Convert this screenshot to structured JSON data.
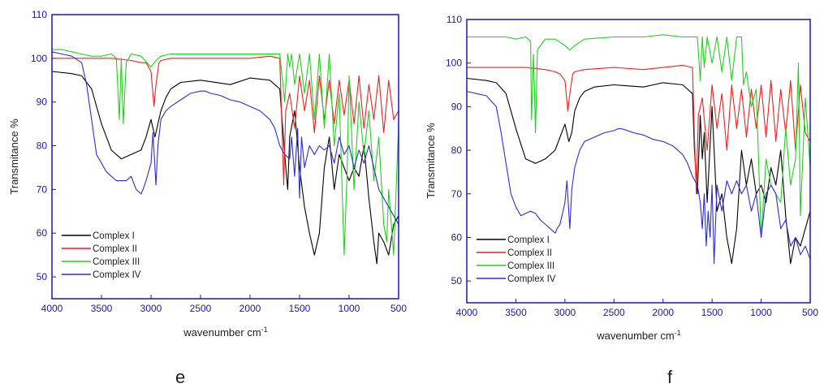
{
  "panels": [
    {
      "letter": "e",
      "ylabel": "Transmitance %",
      "xlabel_main": "wavenumber cm",
      "xlabel_sup": "-1",
      "legend": [
        "Complex I",
        "Complex II",
        "Complex III",
        "Complex IV"
      ]
    },
    {
      "letter": "f",
      "ylabel": "Transmitance %",
      "xlabel_main": "wavenumber cm",
      "xlabel_sup": "-1",
      "legend": [
        "Complex I",
        "Complex II",
        "Complex III",
        "Complex IV"
      ]
    }
  ],
  "chart_data": [
    {
      "type": "line",
      "title": "",
      "xlabel": "wavenumber cm-1",
      "ylabel": "Transmitance %",
      "xlim": [
        4000,
        500
      ],
      "ylim": [
        45,
        110
      ],
      "x_reversed": true,
      "xticks": [
        4000,
        3500,
        3000,
        2500,
        2000,
        1500,
        1000,
        500
      ],
      "yticks": [
        50,
        60,
        70,
        80,
        90,
        100,
        110
      ],
      "legend_position": "bottom-left",
      "series": [
        {
          "name": "Complex I",
          "color": "#000000",
          "x": [
            4000,
            3800,
            3700,
            3600,
            3500,
            3400,
            3300,
            3200,
            3100,
            3050,
            3000,
            2960,
            2930,
            2900,
            2850,
            2800,
            2700,
            2500,
            2200,
            2000,
            1800,
            1700,
            1650,
            1620,
            1600,
            1550,
            1500,
            1450,
            1400,
            1350,
            1300,
            1250,
            1200,
            1150,
            1100,
            1050,
            1000,
            950,
            900,
            850,
            800,
            750,
            720,
            700,
            650,
            600,
            550,
            500
          ],
          "y": [
            97,
            96.5,
            96,
            93,
            85,
            79,
            77,
            78,
            79,
            82,
            86,
            82,
            85,
            88,
            91,
            93,
            94.5,
            95,
            94,
            95.5,
            95,
            93,
            78,
            70,
            82,
            88,
            75,
            66,
            60,
            55,
            60,
            75,
            82,
            70,
            78,
            75,
            72,
            75,
            73,
            80,
            68,
            58,
            53,
            60,
            58,
            55,
            62,
            64
          ]
        },
        {
          "name": "Complex II",
          "color": "#e8251d",
          "x": [
            4000,
            3800,
            3600,
            3400,
            3200,
            3100,
            3050,
            3000,
            2970,
            2950,
            2920,
            2900,
            2800,
            2500,
            2200,
            2000,
            1800,
            1700,
            1680,
            1660,
            1640,
            1600,
            1550,
            1500,
            1450,
            1400,
            1350,
            1300,
            1250,
            1200,
            1150,
            1100,
            1050,
            1000,
            950,
            900,
            850,
            800,
            750,
            700,
            650,
            600,
            550,
            500
          ],
          "y": [
            100,
            100,
            100,
            100,
            99.5,
            99,
            99,
            97,
            89,
            94,
            99,
            99.5,
            100,
            100,
            100,
            100,
            100.5,
            100,
            86,
            71,
            88,
            92,
            84,
            96,
            88,
            95,
            83,
            96,
            86,
            95,
            85,
            95,
            87,
            95,
            85,
            96,
            84,
            94,
            86,
            96,
            83,
            95,
            86,
            88
          ]
        },
        {
          "name": "Complex III",
          "color": "#22d11e",
          "x": [
            4000,
            3900,
            3800,
            3700,
            3600,
            3500,
            3400,
            3350,
            3320,
            3300,
            3280,
            3250,
            3200,
            3100,
            3000,
            2950,
            2900,
            2800,
            2500,
            2200,
            2000,
            1800,
            1700,
            1650,
            1620,
            1600,
            1580,
            1550,
            1500,
            1450,
            1400,
            1350,
            1300,
            1250,
            1200,
            1150,
            1100,
            1050,
            1020,
            1000,
            950,
            900,
            850,
            800,
            750,
            700,
            650,
            620,
            600,
            550,
            500
          ],
          "y": [
            102,
            102,
            101.5,
            101,
            100.5,
            100.5,
            101,
            100,
            86,
            100,
            85,
            99,
            101,
            100.5,
            98,
            99.5,
            100.5,
            101,
            101,
            101,
            101,
            101,
            101,
            90,
            101,
            98,
            101,
            94,
            101,
            92,
            101,
            86,
            101,
            84,
            101,
            80,
            92,
            55,
            74,
            96,
            70,
            90,
            78,
            88,
            72,
            82,
            62,
            58,
            70,
            55,
            85
          ]
        },
        {
          "name": "Complex IV",
          "color": "#2b2fd8",
          "x": [
            4000,
            3900,
            3800,
            3700,
            3650,
            3600,
            3550,
            3500,
            3450,
            3400,
            3350,
            3300,
            3250,
            3200,
            3150,
            3100,
            3080,
            3050,
            3000,
            2980,
            2950,
            2930,
            2900,
            2850,
            2800,
            2700,
            2600,
            2500,
            2450,
            2400,
            2300,
            2200,
            2100,
            2000,
            1900,
            1800,
            1750,
            1700,
            1650,
            1600,
            1580,
            1550,
            1520,
            1500,
            1480,
            1450,
            1400,
            1350,
            1300,
            1250,
            1200,
            1150,
            1100,
            1050,
            1000,
            950,
            900,
            850,
            800,
            750,
            700,
            650,
            600,
            550,
            500
          ],
          "y": [
            101.5,
            101,
            100.5,
            99,
            94,
            86,
            78,
            76,
            74,
            73,
            72,
            72,
            72,
            73,
            70,
            69,
            70,
            72,
            76,
            83,
            71,
            80,
            86,
            88,
            89,
            90.5,
            92,
            92.5,
            92.5,
            92,
            91.5,
            90.5,
            90,
            89,
            88,
            86,
            84,
            80,
            78,
            77,
            82,
            73,
            84,
            68,
            82,
            75,
            80,
            78,
            80,
            79,
            80,
            76,
            82,
            78,
            80,
            75,
            79,
            76,
            80,
            75,
            70,
            68,
            66,
            64,
            62
          ]
        }
      ]
    },
    {
      "type": "line",
      "title": "",
      "xlabel": "wavenumber cm-1",
      "ylabel": "Transmitance %",
      "xlim": [
        4000,
        500
      ],
      "ylim": [
        45,
        110
      ],
      "x_reversed": true,
      "xticks": [
        4000,
        3500,
        3000,
        2500,
        2000,
        1500,
        1000,
        500
      ],
      "yticks": [
        50,
        60,
        70,
        80,
        90,
        100,
        110
      ],
      "legend_position": "bottom-left",
      "series": [
        {
          "name": "Complex I",
          "color": "#000000",
          "x": [
            4000,
            3800,
            3700,
            3600,
            3500,
            3400,
            3300,
            3200,
            3100,
            3050,
            3000,
            2960,
            2930,
            2900,
            2850,
            2800,
            2700,
            2500,
            2200,
            2000,
            1800,
            1700,
            1680,
            1650,
            1620,
            1600,
            1580,
            1550,
            1500,
            1450,
            1400,
            1350,
            1300,
            1250,
            1200,
            1150,
            1100,
            1050,
            1000,
            950,
            900,
            850,
            800,
            750,
            700,
            650,
            600,
            550,
            500
          ],
          "y": [
            96.5,
            96,
            95.5,
            93,
            85,
            78,
            77,
            78,
            80,
            83,
            86,
            82,
            84,
            89,
            92,
            93.5,
            94.5,
            95,
            94.5,
            95.5,
            95,
            93,
            80,
            70,
            88,
            78,
            84,
            68,
            90,
            66,
            70,
            60,
            54,
            62,
            80,
            72,
            78,
            70,
            72,
            68,
            76,
            72,
            80,
            65,
            54,
            60,
            58,
            62,
            66
          ]
        },
        {
          "name": "Complex II",
          "color": "#e8251d",
          "x": [
            4000,
            3800,
            3600,
            3400,
            3200,
            3100,
            3050,
            3000,
            2970,
            2950,
            2920,
            2900,
            2800,
            2500,
            2200,
            2000,
            1800,
            1700,
            1680,
            1660,
            1640,
            1600,
            1550,
            1500,
            1450,
            1400,
            1350,
            1300,
            1250,
            1200,
            1150,
            1100,
            1050,
            1000,
            950,
            900,
            850,
            800,
            750,
            700,
            650,
            600,
            550,
            500
          ],
          "y": [
            99,
            99,
            99,
            99,
            98.5,
            98,
            97.5,
            96,
            89,
            93,
            97.5,
            98,
            98.5,
            99,
            98.5,
            99,
            99.5,
            99,
            83,
            70,
            88,
            92,
            80,
            95,
            85,
            93,
            80,
            95,
            85,
            94,
            83,
            94,
            85,
            95,
            83,
            96,
            82,
            94,
            84,
            96,
            80,
            95,
            84,
            82
          ]
        },
        {
          "name": "Complex III",
          "color": "#22d11e",
          "x": [
            4000,
            3900,
            3800,
            3700,
            3600,
            3500,
            3400,
            3350,
            3340,
            3320,
            3300,
            3280,
            3250,
            3200,
            3100,
            3000,
            2950,
            2900,
            2800,
            2500,
            2200,
            2000,
            1800,
            1700,
            1650,
            1620,
            1600,
            1580,
            1550,
            1500,
            1450,
            1400,
            1350,
            1300,
            1250,
            1200,
            1180,
            1150,
            1100,
            1050,
            1000,
            950,
            900,
            850,
            800,
            750,
            700,
            650,
            620,
            600,
            550,
            500
          ],
          "y": [
            106,
            106,
            106,
            106,
            106,
            105.5,
            106,
            105,
            87,
            102,
            84,
            103,
            104,
            105.5,
            105.5,
            104,
            103,
            104,
            105.5,
            106,
            106,
            106.5,
            106,
            106,
            106,
            96,
            106,
            99,
            106,
            100,
            106,
            98,
            106,
            96,
            106,
            106,
            95,
            98,
            90,
            94,
            60,
            78,
            72,
            70,
            68,
            85,
            72,
            78,
            100,
            65,
            92,
            76
          ]
        },
        {
          "name": "Complex IV",
          "color": "#2b2fd8",
          "x": [
            4000,
            3900,
            3800,
            3700,
            3650,
            3600,
            3550,
            3500,
            3450,
            3400,
            3350,
            3300,
            3250,
            3200,
            3150,
            3100,
            3080,
            3050,
            3000,
            2980,
            2950,
            2930,
            2900,
            2850,
            2800,
            2700,
            2600,
            2500,
            2450,
            2400,
            2300,
            2200,
            2100,
            2000,
            1900,
            1800,
            1750,
            1700,
            1650,
            1620,
            1600,
            1580,
            1560,
            1540,
            1520,
            1500,
            1480,
            1450,
            1400,
            1350,
            1300,
            1250,
            1200,
            1150,
            1100,
            1050,
            1000,
            950,
            900,
            850,
            800,
            750,
            700,
            650,
            600,
            550,
            500
          ],
          "y": [
            93.5,
            93,
            92.5,
            90,
            84,
            77,
            70,
            67,
            65,
            65.5,
            66,
            65.5,
            64,
            63,
            62,
            61,
            62,
            63,
            68,
            73,
            62,
            71,
            76,
            80,
            82,
            83,
            84,
            84.5,
            85,
            84.8,
            84,
            83.5,
            82.5,
            82,
            81,
            79,
            77,
            74,
            72,
            68,
            62,
            70,
            58,
            66,
            60,
            72,
            54,
            72,
            66,
            73,
            70,
            73,
            70,
            72,
            66,
            70,
            60,
            70,
            72,
            70,
            62,
            64,
            58,
            60,
            56,
            58,
            55
          ]
        }
      ]
    }
  ]
}
